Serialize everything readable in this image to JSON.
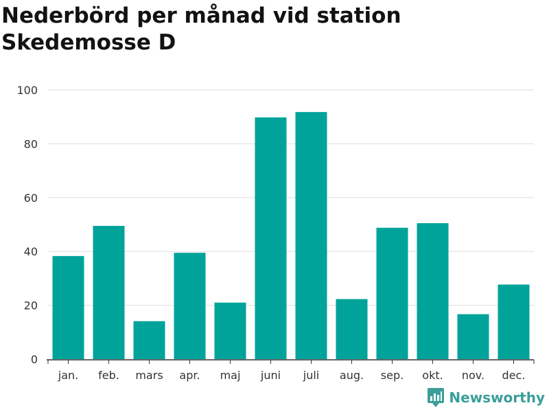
{
  "chart_data": {
    "type": "bar",
    "title": "Nederbörd per månad vid station Skedemosse D",
    "xlabel": "",
    "ylabel": "",
    "categories": [
      "jan.",
      "feb.",
      "mars",
      "apr.",
      "maj",
      "juni",
      "juli",
      "aug.",
      "sep.",
      "okt.",
      "nov.",
      "dec."
    ],
    "values": [
      38.3,
      49.5,
      14.1,
      39.5,
      21.0,
      89.8,
      91.8,
      22.3,
      48.8,
      50.5,
      16.7,
      27.7
    ],
    "ylim": [
      0,
      100
    ],
    "yticks": [
      0,
      20,
      40,
      60,
      80,
      100
    ],
    "grid": true,
    "legend": "none",
    "bar_color": "#00a39a"
  },
  "branding": {
    "name": "Newsworthy",
    "icon": "newsworthy-logo-icon",
    "color": "#3a9e99"
  }
}
